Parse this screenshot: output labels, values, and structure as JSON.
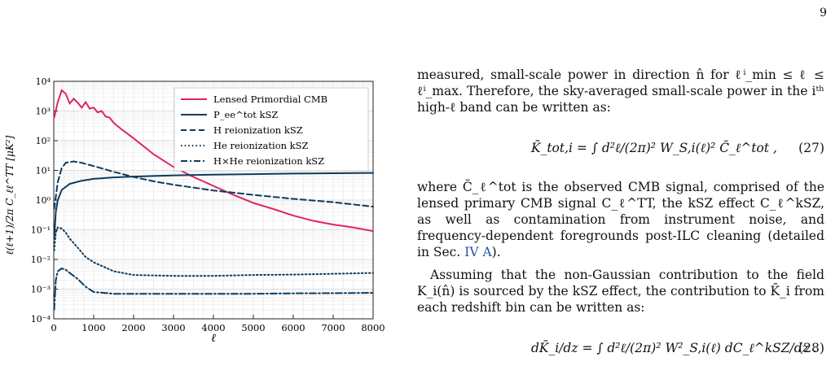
{
  "page": {
    "number": "9"
  },
  "figure": {
    "chart_data": {
      "type": "line",
      "xlabel": "ℓ",
      "ylabel": "ℓ(ℓ+1)/2π C_ℓℓ^TT [μK²]",
      "xlim": [
        0,
        8000
      ],
      "ylim": [
        0.0001,
        10000
      ],
      "yscale": "log",
      "grid": true,
      "legend_position": "top-right",
      "x_ticks": [
        "0",
        "1000",
        "2000",
        "3000",
        "4000",
        "5000",
        "6000",
        "7000",
        "8000"
      ],
      "y_ticks": [
        "10⁴",
        "10³",
        "10²",
        "10¹",
        "10⁰",
        "10⁻¹",
        "10⁻²",
        "10⁻³",
        "10⁻⁴"
      ],
      "series": [
        {
          "name": "Lensed Primordial CMB",
          "color": "#e0245e",
          "style": "solid",
          "x": [
            10,
            100,
            200,
            300,
            400,
            500,
            600,
            700,
            800,
            900,
            1000,
            1100,
            1200,
            1300,
            1400,
            1500,
            1700,
            2000,
            2500,
            3000,
            3500,
            4000,
            4500,
            5000,
            5500,
            6000,
            6500,
            7000,
            7500,
            8000
          ],
          "y": [
            600,
            2000,
            5000,
            3800,
            1800,
            2600,
            1900,
            1300,
            2000,
            1200,
            1300,
            900,
            1000,
            650,
            600,
            400,
            240,
            120,
            35,
            13,
            6,
            3,
            1.5,
            0.8,
            0.5,
            0.3,
            0.2,
            0.15,
            0.12,
            0.09
          ]
        },
        {
          "name": "P_ee^tot kSZ",
          "color": "#0d3b5e",
          "style": "solid",
          "x": [
            10,
            50,
            100,
            200,
            400,
            700,
            1000,
            1500,
            2000,
            3000,
            4000,
            5000,
            6000,
            7000,
            8000
          ],
          "y": [
            0.05,
            0.4,
            1,
            2.2,
            3.5,
            4.5,
            5.2,
            5.8,
            6.2,
            6.8,
            7.2,
            7.5,
            7.8,
            8.0,
            8.2
          ]
        },
        {
          "name": "H reionization kSZ",
          "color": "#0d3b5e",
          "style": "dashed",
          "x": [
            10,
            100,
            200,
            300,
            500,
            700,
            1000,
            1500,
            2000,
            2500,
            3000,
            4000,
            5000,
            6000,
            7000,
            8000
          ],
          "y": [
            0.5,
            4,
            12,
            18,
            20,
            18,
            14,
            9,
            6,
            4.3,
            3.3,
            2.1,
            1.5,
            1.1,
            0.85,
            0.6
          ]
        },
        {
          "name": "He reionization kSZ",
          "color": "#0d3b5e",
          "style": "dotted",
          "x": [
            10,
            50,
            100,
            200,
            300,
            400,
            600,
            800,
            1000,
            1500,
            2000,
            3000,
            4000,
            5000,
            6000,
            7000,
            8000
          ],
          "y": [
            0.02,
            0.08,
            0.12,
            0.11,
            0.08,
            0.05,
            0.025,
            0.012,
            0.008,
            0.004,
            0.003,
            0.0028,
            0.0028,
            0.003,
            0.0031,
            0.0033,
            0.0035
          ]
        },
        {
          "name": "H×He reionization kSZ",
          "color": "#0d3b5e",
          "style": "dashdot",
          "x": [
            10,
            50,
            100,
            200,
            300,
            400,
            600,
            800,
            1000,
            1500,
            2000,
            3000,
            4000,
            5000,
            6000,
            7000,
            8000
          ],
          "y": [
            0.0002,
            0.002,
            0.004,
            0.005,
            0.0045,
            0.0035,
            0.0022,
            0.0012,
            0.0008,
            0.0007,
            0.0007,
            0.0007,
            0.0007,
            0.0007,
            0.00072,
            0.00073,
            0.00075
          ]
        }
      ]
    }
  },
  "text": {
    "p1": "measured, small-scale power in direction n̂ for ℓⁱ_min ≤ ℓ ≤ ℓⁱ_max. Therefore, the sky-averaged small-scale power in the iᵗʰ high-ℓ band can be written as:",
    "eq27": "K̄_tot,i = ∫ d²ℓ/(2π)² W_S,i(ℓ)² C̃_ℓ^tot ,",
    "eq27_num": "(27)",
    "p2a": "where C̃_ℓ^tot is the observed CMB signal, comprised of the lensed primary CMB signal C_ℓ^TT, the kSZ effect C_ℓ^kSZ, as well as contamination from instrument noise, and frequency-dependent foregrounds post-ILC cleaning (detailed in Sec. ",
    "p2_ref": "IV A",
    "p2b": ").",
    "p3": "Assuming that the non-Gaussian contribution to the field K_i(n̂) is sourced by the kSZ effect, the contribution to K̄_i from each redshift bin can be written as:",
    "eq28": "dK̄_i/dz = ∫ d²ℓ/(2π)² W²_S,i(ℓ) dC_ℓ^kSZ/dz .",
    "eq28_num": "(28)"
  }
}
